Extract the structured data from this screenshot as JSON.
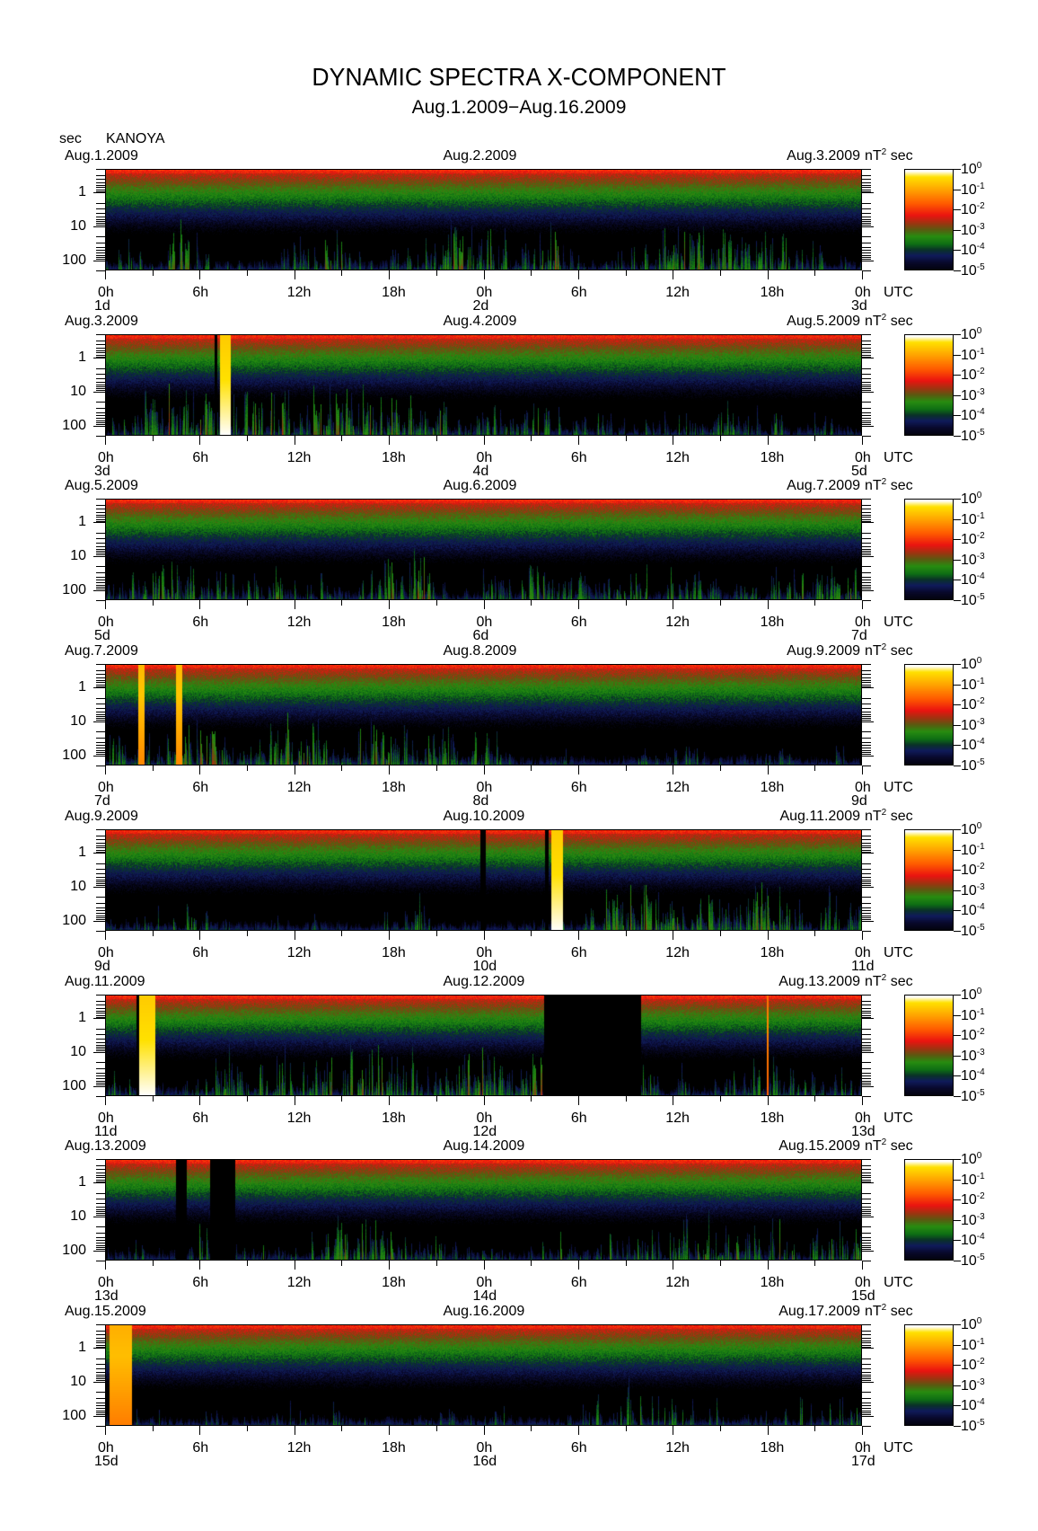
{
  "title": "DYNAMIC SPECTRA X-COMPONENT",
  "subtitle": "Aug.1.2009−Aug.16.2009",
  "y_unit": "sec",
  "station": "KANOYA",
  "utc_label": "UTC",
  "colorbar_unit": {
    "base": "nT",
    "exp": "2",
    "suffix": "sec"
  },
  "chart_data": {
    "type": "heatmap",
    "title": "DYNAMIC SPECTRA X-COMPONENT",
    "ylabel": "sec",
    "yscale": "log",
    "ylim": [
      0.2,
      200
    ],
    "yticks": [
      "1",
      "10",
      "100"
    ],
    "ytick_values": [
      1,
      10,
      100
    ],
    "xticks": [
      "0h",
      "6h",
      "12h",
      "18h",
      "0h",
      "6h",
      "12h",
      "18h",
      "0h"
    ],
    "xrange_hours": [
      0,
      48
    ],
    "colorbar": {
      "base": "10",
      "exponents": [
        "0",
        "-1",
        "-2",
        "-3",
        "-4",
        "-5"
      ],
      "range_log10": [
        -5,
        0
      ]
    },
    "panels": [
      {
        "date_left": "Aug.1.2009",
        "date_mid": "Aug.2.2009",
        "date_right": "Aug.3.2009",
        "days": [
          "1d",
          "2d",
          "3d"
        ],
        "activity": 0.5,
        "bursts": [],
        "gaps": []
      },
      {
        "date_left": "Aug.3.2009",
        "date_mid": "Aug.4.2009",
        "date_right": "Aug.5.2009",
        "days": [
          "3d",
          "4d",
          "5d"
        ],
        "activity": 0.55,
        "bursts": [
          [
            7.2,
            7.9,
            0
          ]
        ],
        "gaps": [
          [
            6.9,
            7.05
          ]
        ]
      },
      {
        "date_left": "Aug.5.2009",
        "date_mid": "Aug.6.2009",
        "date_right": "Aug.7.2009",
        "days": [
          "5d",
          "6d",
          "7d"
        ],
        "activity": 0.55,
        "bursts": [],
        "gaps": []
      },
      {
        "date_left": "Aug.7.2009",
        "date_mid": "Aug.8.2009",
        "date_right": "Aug.9.2009",
        "days": [
          "7d",
          "8d",
          "9d"
        ],
        "activity": 0.55,
        "bursts": [
          [
            2.0,
            2.4,
            -0.2
          ],
          [
            4.4,
            4.8,
            -0.2
          ]
        ],
        "gaps": []
      },
      {
        "date_left": "Aug.9.2009",
        "date_mid": "Aug.10.2009",
        "date_right": "Aug.11.2009",
        "days": [
          "9d",
          "10d",
          "11d"
        ],
        "activity": 0.5,
        "bursts": [
          [
            28.3,
            29.0,
            0
          ]
        ],
        "gaps": [
          [
            23.8,
            24.1
          ],
          [
            27.9,
            28.1
          ]
        ]
      },
      {
        "date_left": "Aug.11.2009",
        "date_mid": "Aug.12.2009",
        "date_right": "Aug.13.2009",
        "days": [
          "11d",
          "12d",
          "13d"
        ],
        "activity": 0.5,
        "bursts": [
          [
            2.1,
            3.1,
            0
          ],
          [
            42.0,
            42.1,
            -0.6
          ]
        ],
        "gaps": [
          [
            1.9,
            2.1
          ],
          [
            27.8,
            34.0
          ]
        ]
      },
      {
        "date_left": "Aug.13.2009",
        "date_mid": "Aug.14.2009",
        "date_right": "Aug.15.2009",
        "days": [
          "13d",
          "14d",
          "15d"
        ],
        "activity": 0.45,
        "bursts": [],
        "gaps": [
          [
            4.4,
            5.1
          ],
          [
            6.6,
            8.2
          ]
        ]
      },
      {
        "date_left": "Aug.15.2009",
        "date_mid": "Aug.16.2009",
        "date_right": "Aug.17.2009",
        "days": [
          "15d",
          "16d",
          "17d"
        ],
        "activity": 0.4,
        "bursts": [
          [
            0.2,
            1.6,
            -0.3
          ]
        ],
        "gaps": []
      }
    ]
  }
}
